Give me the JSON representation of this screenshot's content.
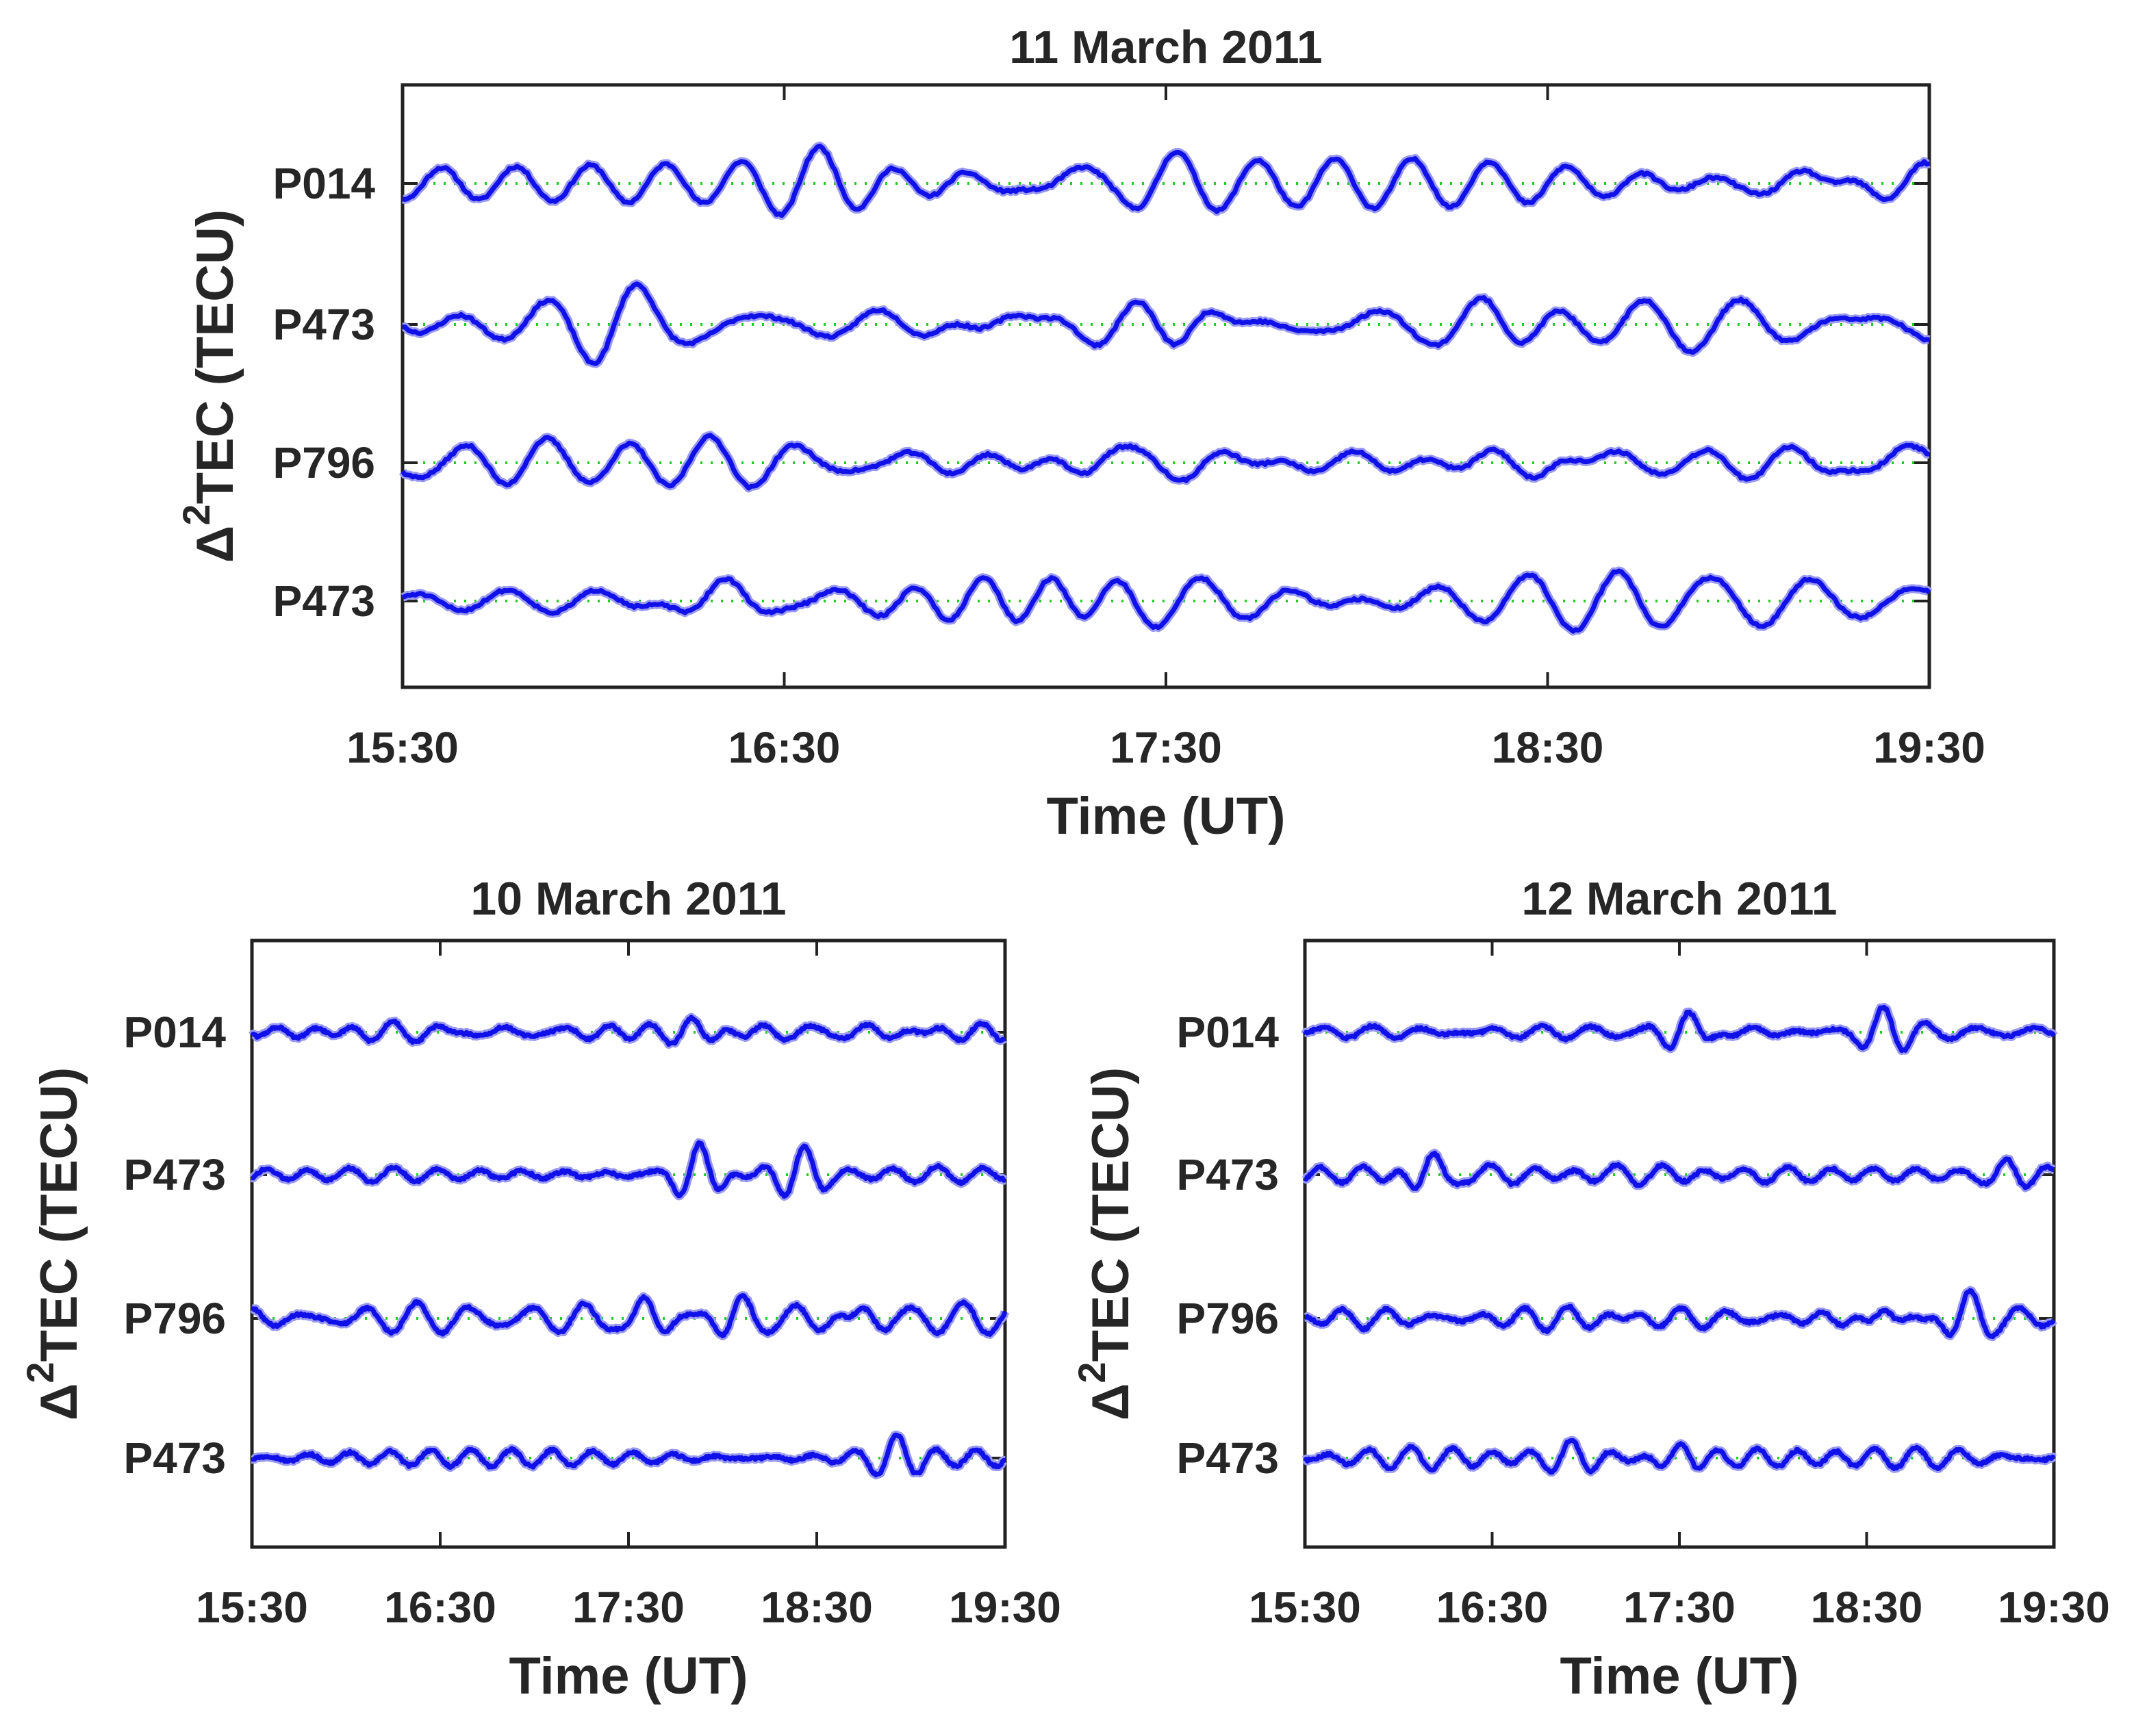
{
  "colors": {
    "trace": "#1010e8",
    "trace_halo": "#9a9af0",
    "baseline": "#22cc22",
    "axes": "#222222",
    "text": "#262626"
  },
  "chart_data": [
    {
      "type": "line",
      "title": "11 March 2011",
      "xlabel": "Time (UT)",
      "ylabel_prefix": "Δ",
      "ylabel_sup": "2",
      "ylabel_rest": "TEC (TECU)",
      "xlim": [
        "15:30",
        "19:30"
      ],
      "xticks": [
        "15:30",
        "16:30",
        "17:30",
        "18:30",
        "19:30"
      ],
      "grid": false,
      "baseline_style": "dotted",
      "series": [
        {
          "name": "P014",
          "amplitude": 0.6,
          "seed": 11,
          "bursts": [
            {
              "t": 65,
              "a": 0.45
            },
            {
              "t": 105,
              "a": 0.55
            },
            {
              "t": 120,
              "a": 0.4
            },
            {
              "t": 220,
              "a": 0.5
            }
          ]
        },
        {
          "name": "P473",
          "amplitude": 0.6,
          "seed": 23,
          "bursts": [
            {
              "t": 35,
              "a": 0.55
            },
            {
              "t": 95,
              "a": 0.45
            },
            {
              "t": 125,
              "a": 0.65
            },
            {
              "t": 170,
              "a": 0.35
            }
          ]
        },
        {
          "name": "P796",
          "amplitude": 0.8,
          "seed": 37,
          "bursts": [
            {
              "t": 20,
              "a": 0.4
            },
            {
              "t": 110,
              "a": 0.6
            },
            {
              "t": 190,
              "a": 0.5
            },
            {
              "t": 235,
              "a": 0.5
            }
          ]
        },
        {
          "name": "P473",
          "amplitude": 0.6,
          "seed": 51,
          "bursts": [
            {
              "t": 50,
              "a": 0.6
            },
            {
              "t": 90,
              "a": 0.9
            },
            {
              "t": 102,
              "a": 1.0
            },
            {
              "t": 200,
              "a": 0.35
            }
          ]
        }
      ]
    },
    {
      "type": "line",
      "title": "10 March 2011",
      "xlabel": "Time (UT)",
      "ylabel_prefix": "Δ",
      "ylabel_sup": "2",
      "ylabel_rest": "TEC (TECU)",
      "xlim": [
        "15:30",
        "19:30"
      ],
      "xticks": [
        "15:30",
        "16:30",
        "17:30",
        "18:30",
        "19:30"
      ],
      "grid": false,
      "baseline_style": "dotted",
      "series": [
        {
          "name": "P014",
          "amplitude": 0.22,
          "seed": 61,
          "bursts": [
            {
              "t": 140,
              "a": 0.2
            }
          ]
        },
        {
          "name": "P473",
          "amplitude": 0.22,
          "seed": 73,
          "bursts": [
            {
              "t": 142,
              "a": 0.75
            },
            {
              "t": 175,
              "a": 0.6
            }
          ]
        },
        {
          "name": "P796",
          "amplitude": 0.28,
          "seed": 89,
          "bursts": [
            {
              "t": 125,
              "a": 0.45
            },
            {
              "t": 155,
              "a": 0.4
            },
            {
              "t": 195,
              "a": 0.3
            }
          ]
        },
        {
          "name": "P473",
          "amplitude": 0.22,
          "seed": 97,
          "bursts": [
            {
              "t": 205,
              "a": 0.4
            }
          ]
        }
      ]
    },
    {
      "type": "line",
      "title": "12 March 2011",
      "xlabel": "Time (UT)",
      "ylabel_prefix": "Δ",
      "ylabel_sup": "2",
      "ylabel_rest": "TEC (TECU)",
      "xlim": [
        "15:30",
        "19:30"
      ],
      "xticks": [
        "15:30",
        "16:30",
        "17:30",
        "18:30",
        "19:30"
      ],
      "grid": false,
      "baseline_style": "dotted",
      "series": [
        {
          "name": "P014",
          "amplitude": 0.2,
          "seed": 103,
          "bursts": [
            {
              "t": 122,
              "a": 0.5
            },
            {
              "t": 185,
              "a": 0.5
            }
          ]
        },
        {
          "name": "P473",
          "amplitude": 0.2,
          "seed": 117,
          "bursts": [
            {
              "t": 40,
              "a": 0.55
            },
            {
              "t": 225,
              "a": 0.3
            }
          ]
        },
        {
          "name": "P796",
          "amplitude": 0.3,
          "seed": 131,
          "bursts": [
            {
              "t": 185,
              "a": 0.45
            },
            {
              "t": 212,
              "a": 0.55
            }
          ]
        },
        {
          "name": "P473",
          "amplitude": 0.22,
          "seed": 149,
          "bursts": [
            {
              "t": 85,
              "a": 0.3
            },
            {
              "t": 120,
              "a": 0.3
            }
          ]
        }
      ]
    }
  ]
}
